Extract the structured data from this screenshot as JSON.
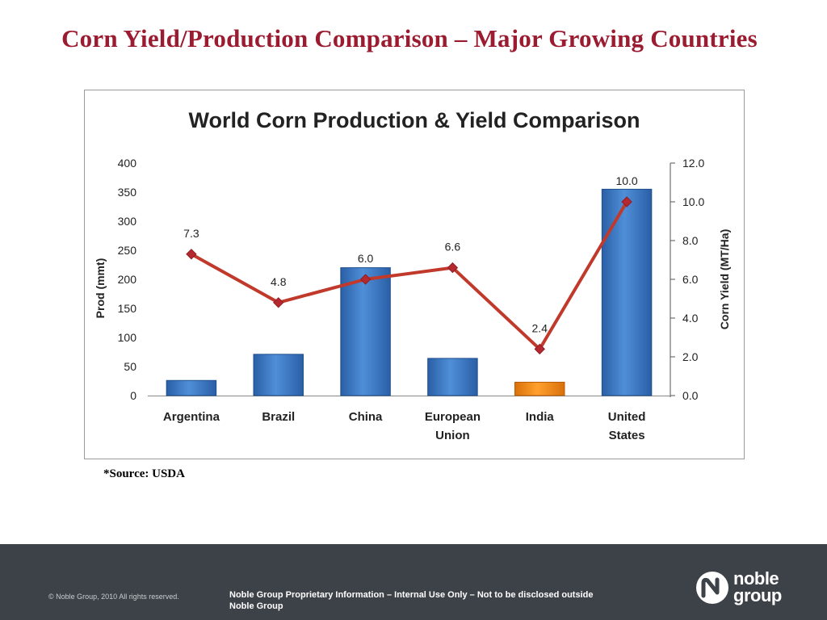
{
  "slide": {
    "title": "Corn Yield/Production Comparison – Major Growing Countries",
    "source": "*Source: USDA"
  },
  "footer": {
    "copyright": "© Noble Group, 2010 All rights reserved.",
    "proprietary_line1": "Noble Group Proprietary Information – Internal Use Only – Not to be disclosed outside",
    "proprietary_line2": "Noble Group",
    "logo_line1": "noble",
    "logo_line2": "group"
  },
  "colors": {
    "title": "#9b1b30",
    "bar": "#3a78c4",
    "bar_highlight": "#f08a12",
    "line": "#c0392b",
    "footer_bg": "#3c4247"
  },
  "chart_data": {
    "type": "bar",
    "title": "World Corn Production & Yield Comparison",
    "categories": [
      "Argentina",
      "Brazil",
      "China",
      "European Union",
      "India",
      "United States"
    ],
    "category_lines": [
      [
        "Argentina"
      ],
      [
        "Brazil"
      ],
      [
        "China"
      ],
      [
        "European",
        "Union"
      ],
      [
        "India"
      ],
      [
        "United",
        "States"
      ]
    ],
    "highlight_index": 4,
    "ylabel": "Prod (mmt)",
    "y2label": "Corn Yield  (MT/Ha)",
    "ylim": [
      0,
      400
    ],
    "yticks": [
      0,
      50,
      100,
      150,
      200,
      250,
      300,
      350,
      400
    ],
    "y2lim": [
      0,
      12
    ],
    "y2ticks": [
      "0.0",
      "2.0",
      "4.0",
      "6.0",
      "8.0",
      "10.0",
      "12.0"
    ],
    "grid": false,
    "legend": "none",
    "series": [
      {
        "type": "bar",
        "axis": "left",
        "values": [
          26,
          71,
          220,
          64,
          23,
          355
        ]
      },
      {
        "type": "line",
        "axis": "right",
        "values": [
          7.3,
          4.8,
          6.0,
          6.6,
          2.4,
          10.0
        ],
        "labels": [
          "7.3",
          "4.8",
          "6.0",
          "6.6",
          "2.4",
          "10.0"
        ]
      }
    ]
  }
}
